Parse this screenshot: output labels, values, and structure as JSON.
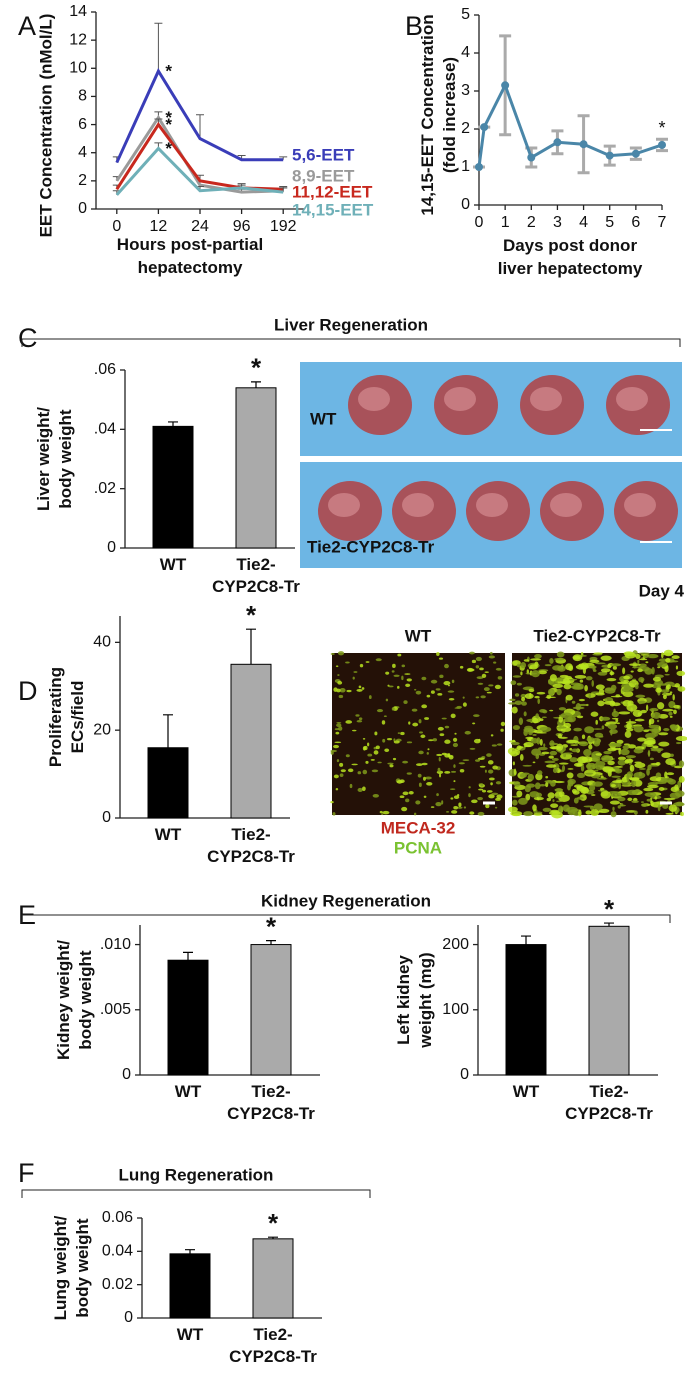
{
  "chart_data": [
    {
      "type": "line",
      "panel": "A",
      "ylabel": "EET Concentration (nMol/L)",
      "xlabel": "Hours post-partial\nhepatectomy",
      "categories": [
        "0",
        "12",
        "24",
        "96",
        "192"
      ],
      "ylim": [
        0,
        14
      ],
      "yticks": [
        0,
        2,
        4,
        6,
        8,
        10,
        12,
        14
      ],
      "series": [
        {
          "name": "5,6-EET",
          "color": "#3a3db8",
          "values": [
            3.3,
            9.8,
            5.0,
            3.5,
            3.5
          ],
          "errors": [
            0.4,
            3.4,
            1.7,
            0.3,
            0.2
          ],
          "significance": [
            null,
            "*",
            null,
            null,
            null
          ]
        },
        {
          "name": "8,9-EET",
          "color": "#9a9a9a",
          "values": [
            2.0,
            6.5,
            1.7,
            1.2,
            1.3
          ],
          "errors": [
            0.3,
            0.4,
            0.3,
            0.2,
            0.2
          ],
          "significance": [
            null,
            "*",
            null,
            null,
            null
          ]
        },
        {
          "name": "11,12-EET",
          "color": "#c8281e",
          "values": [
            1.4,
            6.0,
            2.0,
            1.5,
            1.4
          ],
          "errors": [
            0.3,
            0.4,
            0.4,
            0.2,
            0.2
          ],
          "significance": [
            null,
            "*",
            null,
            null,
            null
          ]
        },
        {
          "name": "14,15-EET",
          "color": "#6fb0b8",
          "values": [
            1.0,
            4.3,
            1.3,
            1.5,
            1.2
          ],
          "errors": [
            0.3,
            0.4,
            0.3,
            0.3,
            0.3
          ],
          "significance": [
            null,
            "*",
            null,
            null,
            null
          ]
        }
      ]
    },
    {
      "type": "errorline",
      "panel": "B",
      "ylabel": "14,15-EET Concentration\n(fold increase)",
      "xlabel": "Days post donor\nliver hepatectomy",
      "x": [
        0,
        0.2,
        1,
        2,
        3,
        4,
        5,
        6,
        7
      ],
      "values": [
        1.0,
        2.05,
        3.15,
        1.25,
        1.65,
        1.6,
        1.3,
        1.35,
        1.58
      ],
      "errors": [
        0,
        0,
        1.3,
        0.25,
        0.3,
        0.75,
        0.25,
        0.15,
        0.15
      ],
      "significance": [
        null,
        null,
        null,
        null,
        null,
        null,
        null,
        null,
        "*"
      ],
      "color": "#4a86a8",
      "error_color": "#aaaaaa",
      "xlim": [
        0,
        7
      ],
      "xticks": [
        0,
        1,
        2,
        3,
        4,
        5,
        6,
        7
      ],
      "ylim": [
        0,
        5
      ],
      "yticks": [
        0,
        1,
        2,
        3,
        4,
        5
      ]
    },
    {
      "type": "bar",
      "panel": "C",
      "title": "Liver Regeneration",
      "ylabel": "Liver weight/\nbody weight",
      "categories": [
        "WT",
        "Tie2-\nCYP2C8-Tr"
      ],
      "values": [
        0.041,
        0.054
      ],
      "errors": [
        0.0015,
        0.002
      ],
      "colors": [
        "#000000",
        "#aaaaaa"
      ],
      "significance": [
        null,
        "*"
      ],
      "ylim": [
        0,
        0.06
      ],
      "yticks": [
        {
          "value": 0,
          "label": "0"
        },
        {
          "value": 0.02,
          "label": ".02"
        },
        {
          "value": 0.04,
          "label": ".04"
        },
        {
          "value": 0.06,
          "label": ".06"
        }
      ],
      "image_labels": [
        "WT",
        "Tie2-CYP2C8-Tr"
      ],
      "image_caption": "Day 4"
    },
    {
      "type": "bar",
      "panel": "D",
      "ylabel": "Proliferating\nECs/field",
      "categories": [
        "WT",
        "Tie2-\nCYP2C8-Tr"
      ],
      "values": [
        16,
        35
      ],
      "errors": [
        7.5,
        8
      ],
      "colors": [
        "#000000",
        "#aaaaaa"
      ],
      "significance": [
        null,
        "*"
      ],
      "ylim": [
        0,
        46
      ],
      "yticks": [
        0,
        20,
        40
      ],
      "image_labels": [
        "WT",
        "Tie2-CYP2C8-Tr"
      ],
      "stain_legend": [
        {
          "name": "MECA-32",
          "color": "#c0281e"
        },
        {
          "name": "PCNA",
          "color": "#7ac231"
        }
      ]
    },
    {
      "type": "bar",
      "panel": "E",
      "title": "Kidney Regeneration",
      "ylabel": "Kidney weight/\nbody weight",
      "categories": [
        "WT",
        "Tie2-\nCYP2C8-Tr"
      ],
      "values": [
        0.0088,
        0.01
      ],
      "errors": [
        0.0006,
        0.0003
      ],
      "colors": [
        "#000000",
        "#aaaaaa"
      ],
      "significance": [
        null,
        "*"
      ],
      "ylim": [
        0,
        0.0115
      ],
      "yticks": [
        {
          "value": 0,
          "label": "0"
        },
        {
          "value": 0.005,
          "label": ".005"
        },
        {
          "value": 0.01,
          "label": ".010"
        }
      ]
    },
    {
      "type": "bar",
      "ylabel": "Left kidney\nweight (mg)",
      "categories": [
        "WT",
        "Tie2-\nCYP2C8-Tr"
      ],
      "values": [
        200,
        228
      ],
      "errors": [
        13,
        5
      ],
      "colors": [
        "#000000",
        "#aaaaaa"
      ],
      "significance": [
        null,
        "*"
      ],
      "ylim": [
        0,
        230
      ],
      "yticks": [
        0,
        100,
        200
      ]
    },
    {
      "type": "bar",
      "panel": "F",
      "title": "Lung Regeneration",
      "ylabel": "Lung weight/\nbody weight",
      "categories": [
        "WT",
        "Tie2-\nCYP2C8-Tr"
      ],
      "values": [
        0.0385,
        0.0475
      ],
      "errors": [
        0.0025,
        0.001
      ],
      "colors": [
        "#000000",
        "#aaaaaa"
      ],
      "significance": [
        null,
        "*"
      ],
      "ylim": [
        0,
        0.06
      ],
      "yticks": [
        0,
        0.02,
        0.04,
        0.06
      ]
    }
  ]
}
